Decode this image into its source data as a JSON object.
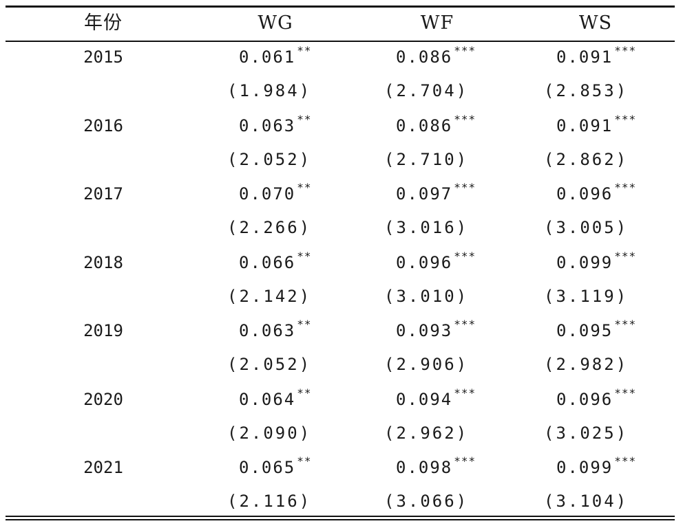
{
  "table": {
    "headers": [
      "年份",
      "WG",
      "WF",
      "WS"
    ],
    "rows": [
      {
        "year": "2015",
        "wg": {
          "coef": "0.061",
          "stars": "**",
          "t": "(1.984)"
        },
        "wf": {
          "coef": "0.086",
          "stars": "***",
          "t": "(2.704)"
        },
        "ws": {
          "coef": "0.091",
          "stars": "***",
          "t": "(2.853)"
        }
      },
      {
        "year": "2016",
        "wg": {
          "coef": "0.063",
          "stars": "**",
          "t": "(2.052)"
        },
        "wf": {
          "coef": "0.086",
          "stars": "***",
          "t": "(2.710)"
        },
        "ws": {
          "coef": "0.091",
          "stars": "***",
          "t": "(2.862)"
        }
      },
      {
        "year": "2017",
        "wg": {
          "coef": "0.070",
          "stars": "**",
          "t": "(2.266)"
        },
        "wf": {
          "coef": "0.097",
          "stars": "***",
          "t": "(3.016)"
        },
        "ws": {
          "coef": "0.096",
          "stars": "***",
          "t": "(3.005)"
        }
      },
      {
        "year": "2018",
        "wg": {
          "coef": "0.066",
          "stars": "**",
          "t": "(2.142)"
        },
        "wf": {
          "coef": "0.096",
          "stars": "***",
          "t": "(3.010)"
        },
        "ws": {
          "coef": "0.099",
          "stars": "***",
          "t": "(3.119)"
        }
      },
      {
        "year": "2019",
        "wg": {
          "coef": "0.063",
          "stars": "**",
          "t": "(2.052)"
        },
        "wf": {
          "coef": "0.093",
          "stars": "***",
          "t": "(2.906)"
        },
        "ws": {
          "coef": "0.095",
          "stars": "***",
          "t": "(2.982)"
        }
      },
      {
        "year": "2020",
        "wg": {
          "coef": "0.064",
          "stars": "**",
          "t": "(2.090)"
        },
        "wf": {
          "coef": "0.094",
          "stars": "***",
          "t": "(2.962)"
        },
        "ws": {
          "coef": "0.096",
          "stars": "***",
          "t": "(3.025)"
        }
      },
      {
        "year": "2021",
        "wg": {
          "coef": "0.065",
          "stars": "**",
          "t": "(2.116)"
        },
        "wf": {
          "coef": "0.098",
          "stars": "***",
          "t": "(3.066)"
        },
        "ws": {
          "coef": "0.099",
          "stars": "***",
          "t": "(3.104)"
        }
      }
    ]
  }
}
